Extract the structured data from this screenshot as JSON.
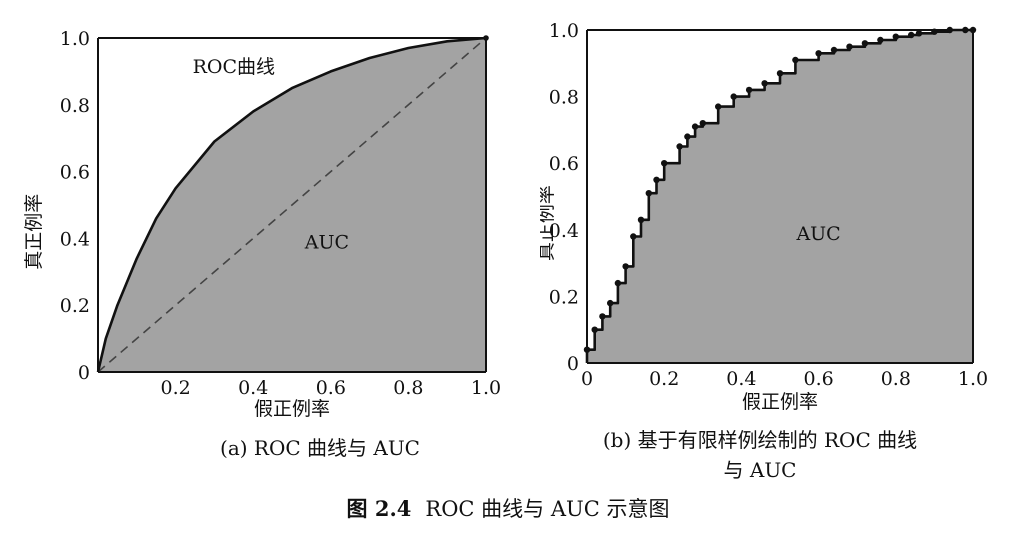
{
  "colors": {
    "fill": "#a3a3a3",
    "line": "#111111",
    "background": "#ffffff"
  },
  "chart_data": [
    {
      "type": "area",
      "panel": "a",
      "xlabel": "假正例率",
      "ylabel": "真正例率",
      "xlim": [
        0,
        1
      ],
      "ylim": [
        0,
        1
      ],
      "xticks": [
        "0.2",
        "0.4",
        "0.6",
        "0.8",
        "1.0"
      ],
      "yticks": [
        "0",
        "0.2",
        "0.4",
        "0.6",
        "0.8",
        "1.0"
      ],
      "origin_label": "0",
      "grid": false,
      "curve_label": "ROC曲线",
      "area_label": "AUC",
      "series": [
        {
          "name": "ROC曲线",
          "x": [
            0,
            0.02,
            0.05,
            0.1,
            0.15,
            0.2,
            0.3,
            0.4,
            0.5,
            0.6,
            0.7,
            0.8,
            0.9,
            1.0
          ],
          "y": [
            0,
            0.1,
            0.2,
            0.34,
            0.46,
            0.55,
            0.69,
            0.78,
            0.85,
            0.9,
            0.94,
            0.97,
            0.99,
            1.0
          ]
        },
        {
          "x": [
            0,
            1
          ],
          "y": [
            0,
            1
          ]
        }
      ]
    },
    {
      "type": "area",
      "panel": "b",
      "xlabel": "假正例率",
      "ylabel": "真正例率",
      "xlim": [
        0,
        1
      ],
      "ylim": [
        0,
        1
      ],
      "xticks": [
        "0",
        "0.2",
        "0.4",
        "0.6",
        "0.8",
        "1.0"
      ],
      "yticks": [
        "0",
        "0.2",
        "0.4",
        "0.6",
        "0.8",
        "1.0"
      ],
      "grid": false,
      "area_label": "AUC",
      "series": [
        {
          "x": [
            0,
            0,
            0.02,
            0.02,
            0.04,
            0.04,
            0.06,
            0.06,
            0.08,
            0.08,
            0.1,
            0.1,
            0.12,
            0.12,
            0.14,
            0.14,
            0.16,
            0.16,
            0.18,
            0.18,
            0.2,
            0.2,
            0.24,
            0.24,
            0.26,
            0.26,
            0.28,
            0.28,
            0.3,
            0.3,
            0.34,
            0.34,
            0.38,
            0.38,
            0.42,
            0.42,
            0.46,
            0.46,
            0.5,
            0.5,
            0.54,
            0.54,
            0.6,
            0.6,
            0.64,
            0.64,
            0.68,
            0.68,
            0.72,
            0.72,
            0.76,
            0.76,
            0.8,
            0.8,
            0.84,
            0.84,
            0.86,
            0.86,
            0.9,
            0.9,
            0.94,
            0.94,
            0.98,
            0.98,
            1.0
          ],
          "y": [
            0,
            0.04,
            0.04,
            0.1,
            0.1,
            0.14,
            0.14,
            0.18,
            0.18,
            0.24,
            0.24,
            0.29,
            0.29,
            0.38,
            0.38,
            0.43,
            0.43,
            0.51,
            0.51,
            0.55,
            0.55,
            0.6,
            0.6,
            0.65,
            0.65,
            0.68,
            0.68,
            0.71,
            0.71,
            0.72,
            0.72,
            0.77,
            0.77,
            0.8,
            0.8,
            0.82,
            0.82,
            0.84,
            0.84,
            0.87,
            0.87,
            0.91,
            0.91,
            0.93,
            0.93,
            0.94,
            0.94,
            0.95,
            0.95,
            0.96,
            0.96,
            0.97,
            0.97,
            0.98,
            0.98,
            0.985,
            0.985,
            0.99,
            0.99,
            0.995,
            0.995,
            1.0,
            1.0,
            1.0,
            1.0
          ]
        }
      ]
    }
  ],
  "captions": {
    "a": "(a) ROC 曲线与 AUC",
    "b_line1": "(b) 基于有限样例绘制的 ROC 曲线",
    "b_line2": "与 AUC",
    "figure_number": "图 2.4",
    "figure_title": "ROC 曲线与 AUC 示意图"
  }
}
